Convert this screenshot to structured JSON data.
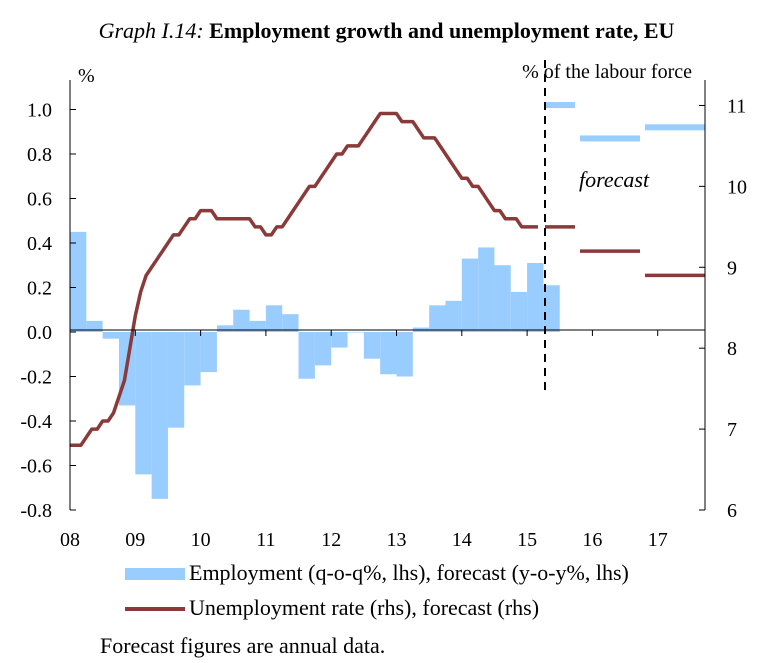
{
  "title": {
    "label": "Graph I.14:",
    "text": "Employment growth and unemployment rate, EU"
  },
  "chart_data": {
    "type": "bar+line",
    "ylabel_left": "%",
    "ylabel_right": "% of the labour force",
    "ylim_left": [
      -0.8,
      1.2
    ],
    "yticks_left": [
      "1.0",
      "0.8",
      "0.6",
      "0.4",
      "0.2",
      "0.0",
      "-0.2",
      "-0.4",
      "-0.6",
      "-0.8"
    ],
    "ylim_right": [
      6,
      11.5
    ],
    "yticks_right": [
      "11",
      "10",
      "9",
      "8",
      "7",
      "6"
    ],
    "xticks": [
      "08",
      "09",
      "10",
      "11",
      "12",
      "13",
      "14",
      "15",
      "16",
      "17"
    ],
    "forecast_label": "forecast",
    "series": [
      {
        "name": "Employment (q-o-q%, lhs), forecast (y-o-y%, lhs)",
        "color": "#99ccff",
        "quarterly": {
          "start": 2008.0,
          "values": [
            0.45,
            0.05,
            -0.03,
            -0.33,
            -0.64,
            -0.75,
            -0.43,
            -0.24,
            -0.18,
            0.03,
            0.1,
            0.05,
            0.12,
            0.08,
            -0.21,
            -0.15,
            -0.07,
            0.0,
            -0.12,
            -0.19,
            -0.2,
            0.02,
            0.12,
            0.14,
            0.33,
            0.38,
            0.3,
            0.18,
            0.31,
            0.21
          ]
        },
        "forecast": [
          {
            "year": 2015,
            "value": 1.02
          },
          {
            "year": 2016,
            "value": 0.87
          },
          {
            "year": 2017,
            "value": 0.92
          }
        ]
      },
      {
        "name": "Unemployment rate (rhs), forecast (rhs)",
        "color": "#8b3a3a",
        "monthly": {
          "start": 2008.0,
          "values": [
            6.8,
            6.8,
            6.8,
            6.9,
            7.0,
            7.0,
            7.1,
            7.1,
            7.2,
            7.4,
            7.6,
            8.0,
            8.4,
            8.7,
            8.9,
            9.0,
            9.1,
            9.2,
            9.3,
            9.4,
            9.4,
            9.5,
            9.6,
            9.6,
            9.7,
            9.7,
            9.7,
            9.6,
            9.6,
            9.6,
            9.6,
            9.6,
            9.6,
            9.6,
            9.5,
            9.5,
            9.4,
            9.4,
            9.5,
            9.5,
            9.6,
            9.7,
            9.8,
            9.9,
            10.0,
            10.0,
            10.1,
            10.2,
            10.3,
            10.4,
            10.4,
            10.5,
            10.5,
            10.5,
            10.6,
            10.7,
            10.8,
            10.9,
            10.9,
            10.9,
            10.9,
            10.8,
            10.8,
            10.8,
            10.7,
            10.6,
            10.6,
            10.6,
            10.5,
            10.4,
            10.3,
            10.2,
            10.1,
            10.1,
            10.0,
            10.0,
            9.9,
            9.8,
            9.7,
            9.7,
            9.6,
            9.6,
            9.6,
            9.5,
            9.5,
            9.5,
            9.5
          ]
        },
        "forecast": [
          {
            "year": 2015,
            "value": 9.5
          },
          {
            "year": 2016,
            "value": 9.2
          },
          {
            "year": 2017,
            "value": 8.9
          }
        ]
      }
    ],
    "legend": [
      {
        "label": "Employment (q-o-q%, lhs), forecast (y-o-y%, lhs)",
        "type": "bar"
      },
      {
        "label": "Unemployment rate (rhs), forecast (rhs)",
        "type": "line"
      }
    ],
    "note": "Forecast figures are annual data."
  }
}
